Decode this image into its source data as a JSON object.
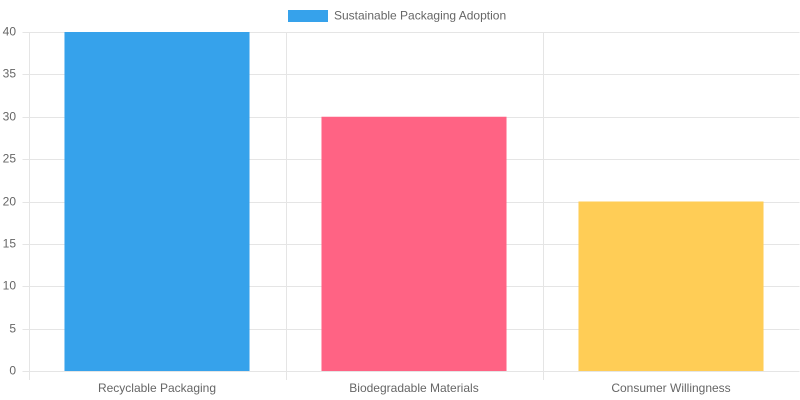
{
  "chart_data": {
    "type": "bar",
    "categories": [
      "Recyclable Packaging",
      "Biodegradable Materials",
      "Consumer Willingness"
    ],
    "series": [
      {
        "name": "Sustainable Packaging Adoption",
        "values": [
          40,
          30,
          20
        ],
        "colors": [
          "#36a2eb",
          "#ff6384",
          "#ffcd56"
        ]
      }
    ],
    "ylim": [
      0,
      40
    ],
    "yticks": [
      0,
      5,
      10,
      15,
      20,
      25,
      30,
      35,
      40
    ],
    "grid": true,
    "legend": "top"
  }
}
